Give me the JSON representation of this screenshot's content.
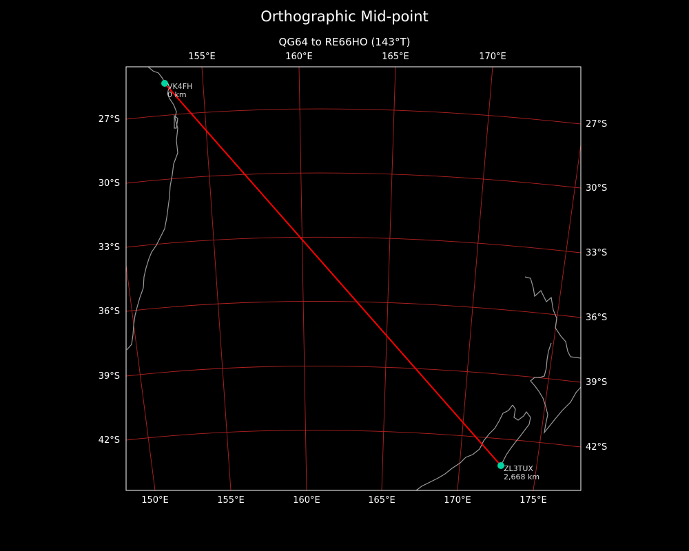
{
  "title": "Orthographic Mid-point",
  "subtitle": "QG64 to RE66HO (143°T)",
  "colors": {
    "background": "#000000",
    "graticule": "#b22222",
    "path": "#ff0000",
    "coastline": "#9a9a9a",
    "station": "#00d4a0",
    "frame": "#ffffff"
  },
  "ticks": {
    "top_lon": [
      "155°E",
      "160°E",
      "165°E",
      "170°E"
    ],
    "bottom_lon": [
      "150°E",
      "155°E",
      "160°E",
      "165°E",
      "170°E",
      "175°E"
    ],
    "left_lat": [
      "27°S",
      "30°S",
      "33°S",
      "36°S",
      "39°S",
      "42°S"
    ],
    "right_lat": [
      "27°S",
      "30°S",
      "33°S",
      "36°S",
      "39°S",
      "42°S"
    ]
  },
  "stations": [
    {
      "call": "VK4FH",
      "distance": "0 km"
    },
    {
      "call": "ZL3TUX",
      "distance": "2,668 km"
    }
  ]
}
